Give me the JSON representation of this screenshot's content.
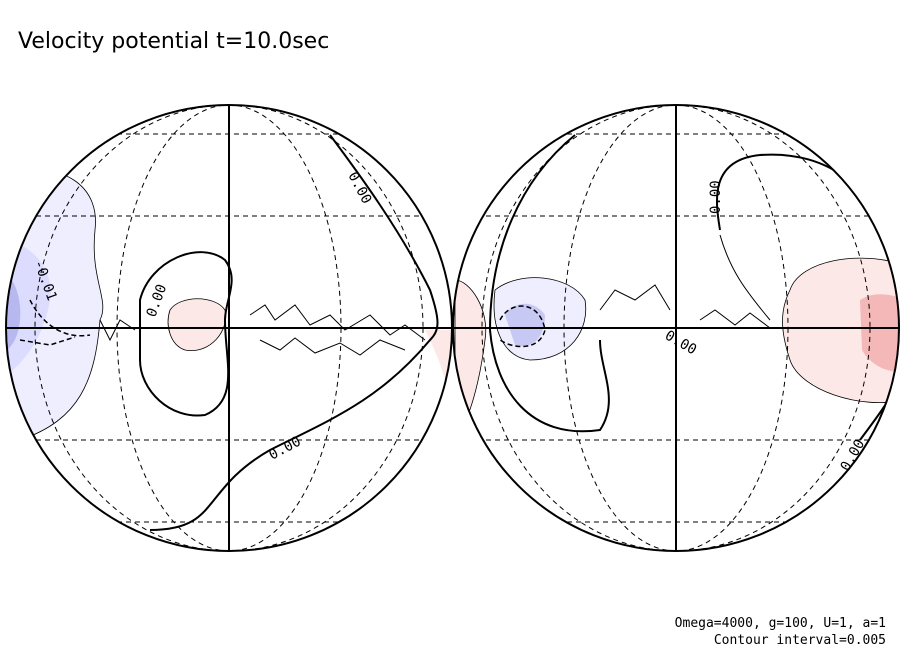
{
  "title": "Velocity potential t=10.0sec",
  "contour_labels": [
    "0.00",
    "0.00",
    "0.00",
    "-0.01",
    "0.00",
    "0.00",
    "0.00"
  ],
  "footer": [
    "Omega=4000, g=100, U=1, a=1",
    "Contour interval=0.005"
  ]
}
